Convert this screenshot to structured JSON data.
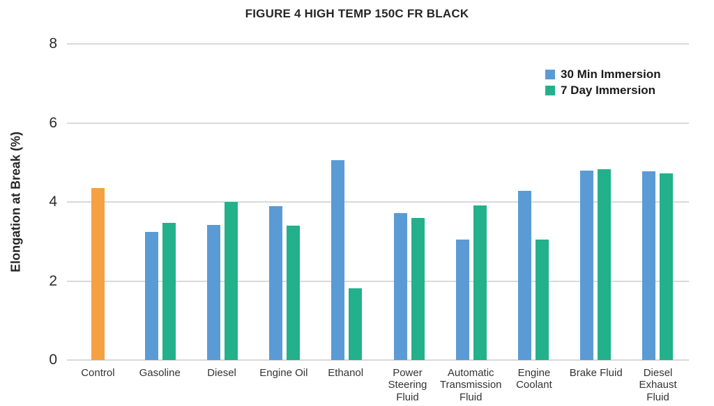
{
  "chart_data": {
    "type": "bar",
    "title": "FIGURE 4 HIGH TEMP 150C FR BLACK",
    "ylabel": "Elongation at Break (%)",
    "xlabel": "",
    "ylim": [
      0,
      8
    ],
    "yticks": [
      0,
      2,
      4,
      6,
      8
    ],
    "grid": "horizontal",
    "legend_position": "top-right",
    "categories": [
      "Control",
      "Gasoline",
      "Diesel",
      "Engine Oil",
      "Ethanol",
      "Power Steering Fluid",
      "Automatic Transmission Fluid",
      "Engine Coolant",
      "Brake Fluid",
      "Diesel Exhaust Fluid"
    ],
    "control_bar": {
      "category": "Control",
      "color": "#F5A142",
      "value": 4.35
    },
    "series": [
      {
        "name": "30 Min Immersion",
        "color": "#5B9BD5",
        "values": [
          null,
          3.25,
          3.42,
          3.9,
          5.05,
          3.72,
          3.05,
          4.28,
          4.8,
          4.78
        ]
      },
      {
        "name": "7 Day Immersion",
        "color": "#22B18A",
        "values": [
          null,
          3.47,
          4.0,
          3.4,
          1.82,
          3.6,
          3.92,
          3.05,
          4.82,
          4.73
        ]
      }
    ],
    "colors": {
      "gridline": "#D9D9D9",
      "text": "#262626"
    }
  }
}
